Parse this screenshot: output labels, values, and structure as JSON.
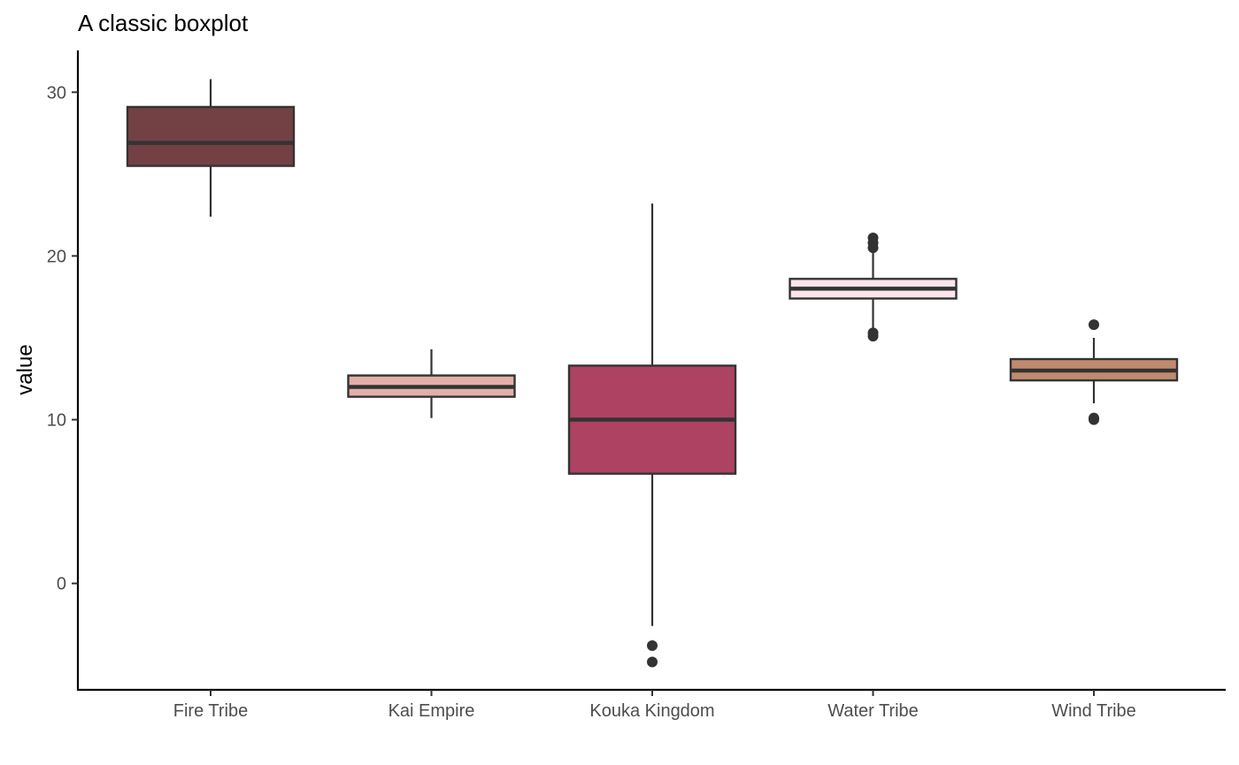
{
  "chart_data": {
    "type": "boxplot",
    "title": "A classic boxplot",
    "xlabel": "",
    "ylabel": "value",
    "ylim": [
      -6.5,
      32.5
    ],
    "yticks": [
      0,
      10,
      20,
      30
    ],
    "grid": false,
    "legend": "none",
    "categories": [
      "Fire Tribe",
      "Kai Empire",
      "Kouka Kingdom",
      "Water Tribe",
      "Wind Tribe"
    ],
    "series": [
      {
        "category": "Fire Tribe",
        "color": "#734144",
        "min": 22.4,
        "q1": 25.5,
        "median": 26.9,
        "q3": 29.1,
        "max": 30.8,
        "outliers": []
      },
      {
        "category": "Kai Empire",
        "color": "#E2AFAA",
        "min": 10.1,
        "q1": 11.4,
        "median": 12.0,
        "q3": 12.7,
        "max": 14.3,
        "outliers": []
      },
      {
        "category": "Kouka Kingdom",
        "color": "#AD4263",
        "min": -2.6,
        "q1": 6.7,
        "median": 10.0,
        "q3": 13.3,
        "max": 23.2,
        "outliers": [
          -3.8,
          -4.8
        ]
      },
      {
        "category": "Water Tribe",
        "color": "#FBE5EA",
        "min": 15.5,
        "q1": 17.4,
        "median": 18.0,
        "q3": 18.6,
        "max": 20.4,
        "outliers": [
          21.1,
          20.8,
          20.5,
          15.3,
          15.1
        ]
      },
      {
        "category": "Wind Tribe",
        "color": "#C08A6E",
        "min": 11.0,
        "q1": 12.4,
        "median": 13.0,
        "q3": 13.7,
        "max": 15.0,
        "outliers": [
          15.8,
          10.1,
          10.0
        ]
      }
    ]
  }
}
